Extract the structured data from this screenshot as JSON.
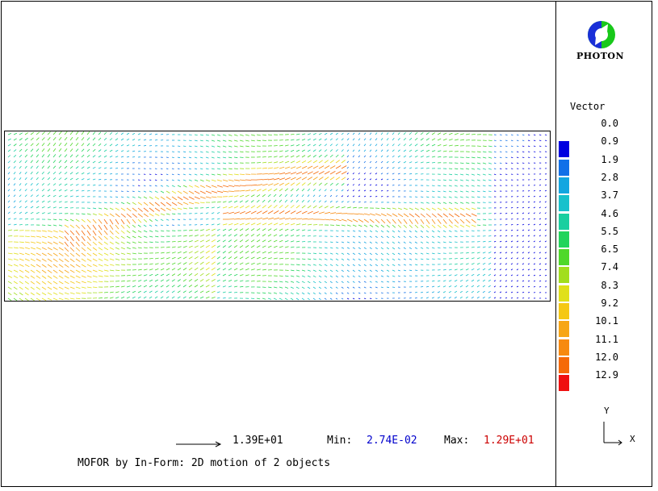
{
  "legend": {
    "title": "Vector",
    "levels": [
      {
        "label": "0.0",
        "color": null
      },
      {
        "label": "0.9",
        "color": "#0000e0"
      },
      {
        "label": "1.9",
        "color": "#1170e8"
      },
      {
        "label": "2.8",
        "color": "#13a6e0"
      },
      {
        "label": "3.7",
        "color": "#18c1cc"
      },
      {
        "label": "4.6",
        "color": "#1acfa0"
      },
      {
        "label": "5.5",
        "color": "#22d45c"
      },
      {
        "label": "6.5",
        "color": "#4fd82a"
      },
      {
        "label": "7.4",
        "color": "#a2de1e"
      },
      {
        "label": "8.3",
        "color": "#e0e01a"
      },
      {
        "label": "9.2",
        "color": "#f5c814"
      },
      {
        "label": "10.1",
        "color": "#f7a616"
      },
      {
        "label": "11.1",
        "color": "#f78a10"
      },
      {
        "label": "12.0",
        "color": "#f56a08"
      },
      {
        "label": "12.9",
        "color": "#ef1010"
      }
    ]
  },
  "logo": {
    "text": "PHOTON",
    "blue": "#1a2fd8",
    "green": "#18c81a"
  },
  "axes": {
    "y": "Y",
    "x": "X"
  },
  "footer": {
    "ref_vector": "1.39E+01",
    "min_label": "Min:",
    "min_value": "2.74E-02",
    "max_label": "Max:",
    "max_value": "1.29E+01",
    "caption": "MOFOR by In-Form: 2D motion of 2 objects",
    "colors": {
      "min": "#0000cc",
      "max": "#cc0000"
    }
  }
}
